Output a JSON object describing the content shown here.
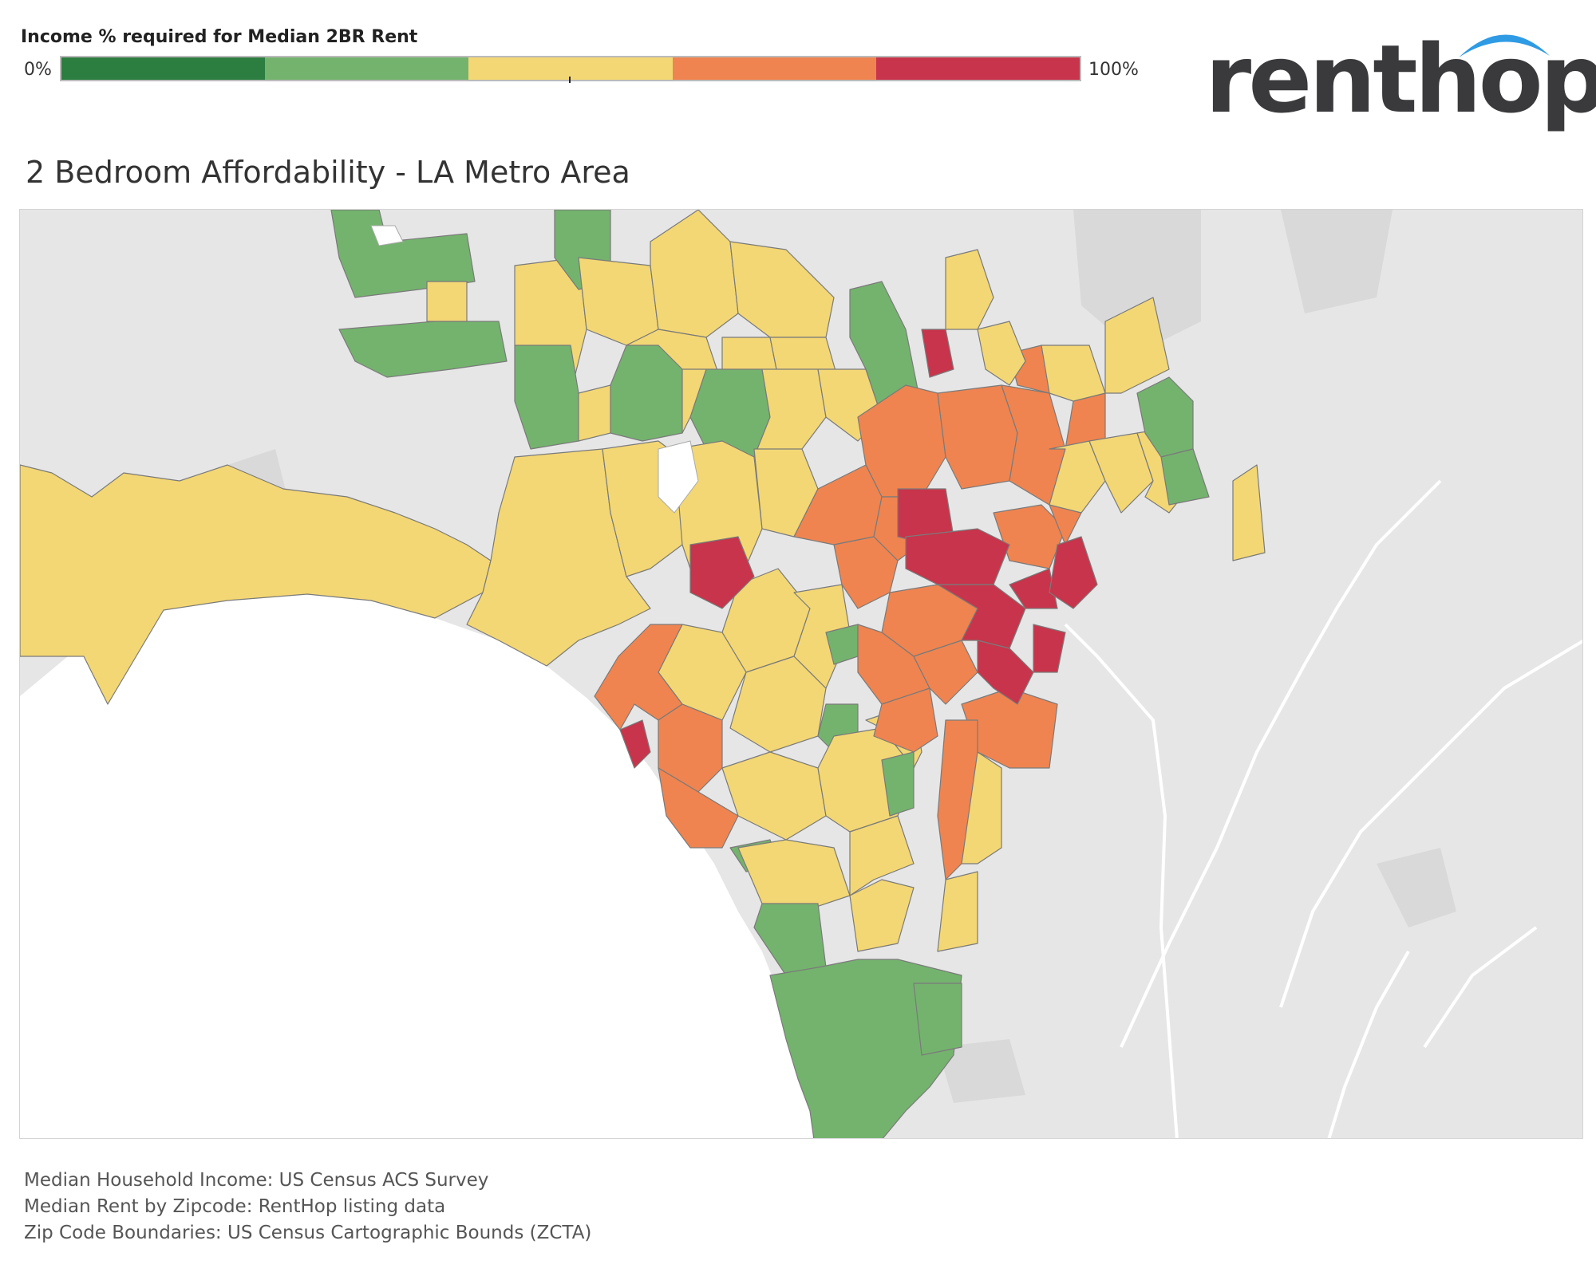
{
  "legend": {
    "title": "Income % required for Median 2BR Rent",
    "min_label": "0%",
    "max_label": "100%",
    "colors": [
      "#2b7d40",
      "#74b36e",
      "#f3d774",
      "#ef8450",
      "#c8344b"
    ]
  },
  "logo": {
    "text": "renthop",
    "arc_color": "#2f9be4"
  },
  "map": {
    "title": "2 Bedroom Affordability - LA Metro Area",
    "land_color": "#e6e6e6",
    "water_color": "#ffffff",
    "road_color": "#ffffff"
  },
  "sources": {
    "income": "Median Household Income: US Census ACS Survey",
    "rent": "Median Rent by Zipcode: RentHop listing data",
    "boundaries": "Zip Code Boundaries: US Census Cartographic Bounds (ZCTA)"
  }
}
